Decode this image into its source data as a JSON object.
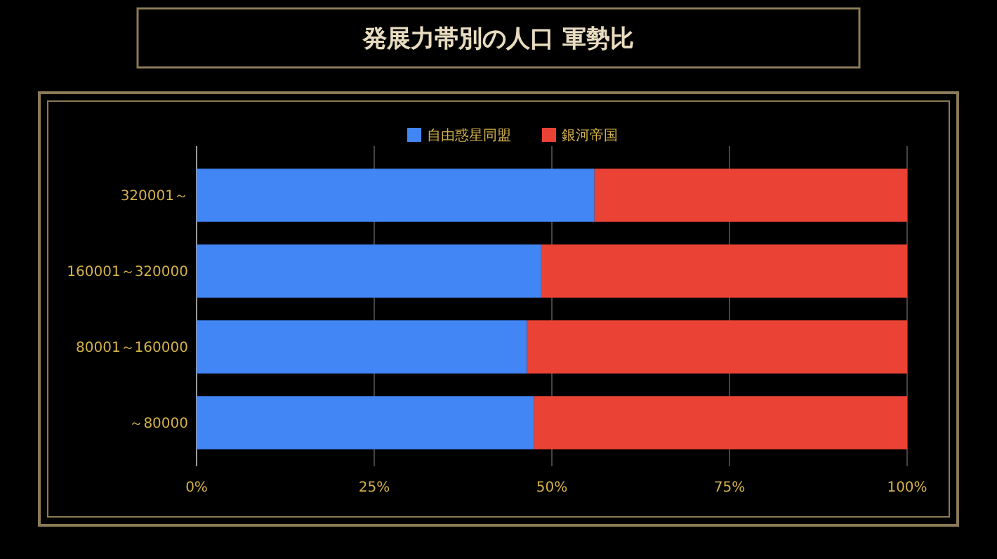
{
  "chart_data": {
    "type": "bar",
    "title": "発展力帯別の人口 軍勢比",
    "orientation": "horizontal",
    "stacked": true,
    "categories": [
      "320001～",
      "160001～320000",
      "80001～160000",
      "～80000"
    ],
    "series": [
      {
        "name": "自由惑星同盟",
        "color": "#4285f4",
        "values": [
          56,
          48.5,
          46.5,
          47.5
        ]
      },
      {
        "name": "銀河帝国",
        "color": "#ea4335",
        "values": [
          44,
          51.5,
          53.5,
          52.5
        ]
      }
    ],
    "xlim": [
      0,
      100
    ],
    "xticks": [
      {
        "value": 0,
        "label": "0%"
      },
      {
        "value": 25,
        "label": "25%"
      },
      {
        "value": 50,
        "label": "50%"
      },
      {
        "value": 75,
        "label": "75%"
      },
      {
        "value": 100,
        "label": "100%"
      }
    ],
    "grid": "x",
    "legend": "top"
  }
}
